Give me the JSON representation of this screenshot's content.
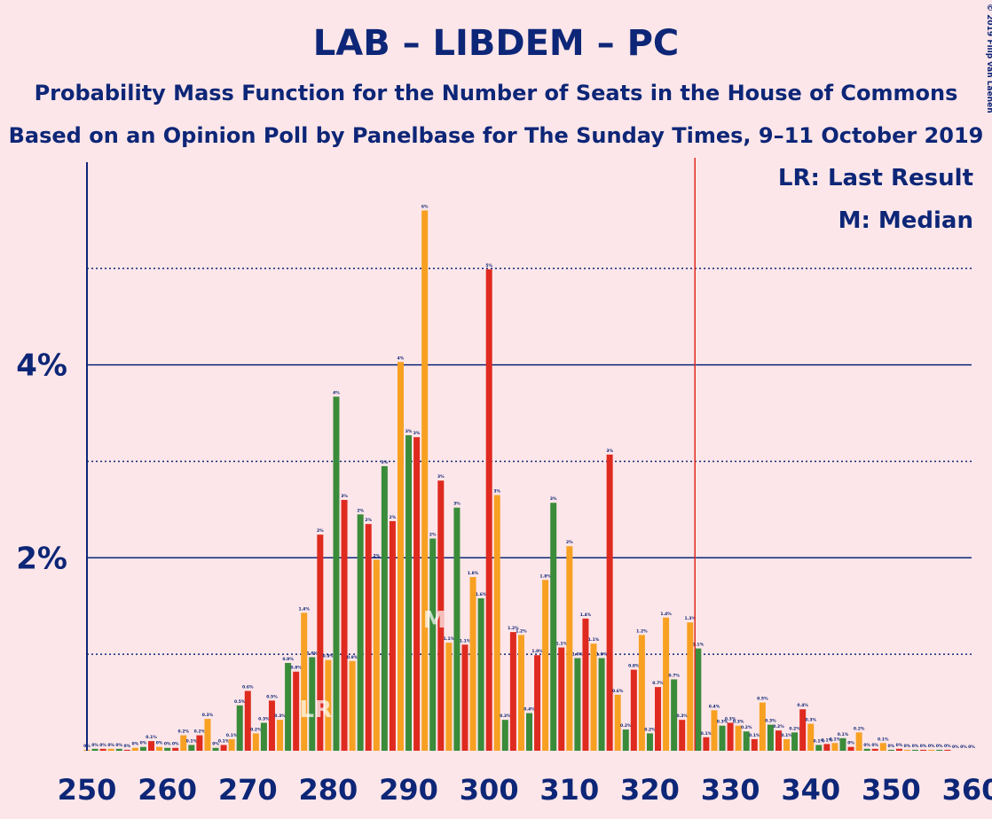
{
  "chart_data": {
    "type": "bar",
    "title": "LAB – LIBDEM – PC",
    "subtitle": "Probability Mass Function for the Number of Seats in the House of Commons",
    "subtitle2": "Based on an Opinion Poll by Panelbase for The Sunday Times, 9–11 October 2019",
    "copyright": "© 2019 Filip van Laenen",
    "legend_lr": "LR: Last Result",
    "legend_m": "M: Median",
    "last_result_marker": "LR",
    "median_marker": "M",
    "last_result": 278,
    "median": 293,
    "majority": 326,
    "x": [
      250,
      251,
      252,
      253,
      254,
      255,
      256,
      257,
      258,
      259,
      260,
      261,
      262,
      263,
      264,
      265,
      266,
      267,
      268,
      269,
      270,
      271,
      272,
      273,
      274,
      275,
      276,
      277,
      278,
      279,
      280,
      281,
      282,
      283,
      284,
      285,
      286,
      287,
      288,
      289,
      290,
      291,
      292,
      293,
      294,
      295,
      296,
      297,
      298,
      299,
      300,
      301,
      302,
      303,
      304,
      305,
      306,
      307,
      308,
      309,
      310,
      311,
      312,
      313,
      314,
      315,
      316,
      317,
      318,
      319,
      320,
      321,
      322,
      323,
      324,
      325,
      326,
      327,
      328,
      329,
      330,
      331,
      332,
      333,
      334,
      335,
      336,
      337,
      338,
      339,
      340,
      341,
      342,
      343,
      344,
      345,
      346,
      347,
      348,
      349,
      350,
      351,
      352,
      353,
      354,
      355,
      356,
      357,
      358,
      359,
      360
    ],
    "values": [
      0.01,
      0.02,
      0.02,
      0.02,
      0.02,
      0.01,
      0.03,
      0.04,
      0.1,
      0.04,
      0.03,
      0.03,
      0.16,
      0.06,
      0.16,
      0.33,
      0.03,
      0.06,
      0.12,
      0.47,
      0.62,
      0.18,
      0.29,
      0.52,
      0.32,
      0.91,
      0.82,
      1.43,
      0.97,
      2.24,
      0.94,
      3.67,
      2.6,
      0.93,
      2.45,
      2.35,
      1.98,
      2.95,
      2.38,
      4.03,
      3.27,
      3.25,
      5.6,
      2.2,
      2.8,
      1.12,
      2.52,
      1.1,
      1.8,
      1.58,
      4.99,
      2.65,
      0.32,
      1.23,
      1.2,
      0.39,
      0.99,
      1.77,
      2.57,
      1.07,
      2.12,
      0.96,
      1.37,
      1.11,
      0.96,
      3.07,
      0.58,
      0.22,
      0.84,
      1.2,
      0.18,
      0.66,
      1.38,
      0.74,
      0.32,
      1.33,
      1.06,
      0.14,
      0.42,
      0.26,
      0.29,
      0.26,
      0.2,
      0.12,
      0.5,
      0.27,
      0.21,
      0.12,
      0.19,
      0.43,
      0.28,
      0.06,
      0.07,
      0.08,
      0.13,
      0.04,
      0.19,
      0.02,
      0.02,
      0.08,
      0.01,
      0.02,
      0.01,
      0.01,
      0.01,
      0.01,
      0.01,
      0.01,
      0,
      0,
      0
    ],
    "value_labels": [
      "0%",
      "0%",
      "0%",
      "0%",
      "0%",
      "0%",
      "0%",
      "0%",
      "0.1%",
      "0%",
      "0%",
      "0%",
      "0.2%",
      "0.1%",
      "0.2%",
      "0.3%",
      "0%",
      "0.1%",
      "0.1%",
      "0.5%",
      "0.6%",
      "0.2%",
      "0.3%",
      "0.5%",
      "0.3%",
      "0.9%",
      "0.8%",
      "1.4%",
      "1.0%",
      "2%",
      "0.9%",
      "4%",
      "3%",
      "0.9%",
      "2%",
      "2%",
      "2%",
      "3%",
      "2%",
      "4%",
      "3%",
      "3%",
      "6%",
      "2%",
      "3%",
      "1.1%",
      "3%",
      "1.1%",
      "1.8%",
      "1.6%",
      "5%",
      "3%",
      "0.3%",
      "1.2%",
      "1.2%",
      "0.4%",
      "1.0%",
      "1.8%",
      "3%",
      "1.1%",
      "2%",
      "1.0%",
      "1.4%",
      "1.1%",
      "1.0%",
      "3%",
      "0.6%",
      "0.2%",
      "0.8%",
      "1.2%",
      "0.2%",
      "0.7%",
      "1.4%",
      "0.7%",
      "0.3%",
      "1.3%",
      "1.1%",
      "0.1%",
      "0.4%",
      "0.3%",
      "0.3%",
      "0.3%",
      "0.2%",
      "0.1%",
      "0.5%",
      "0.3%",
      "0.2%",
      "0.1%",
      "0.2%",
      "0.4%",
      "0.3%",
      "0.1%",
      "0.1%",
      "0.1%",
      "0.1%",
      "0%",
      "0.2%",
      "0%",
      "0%",
      "0.1%",
      "0%",
      "0%",
      "0%",
      "0%",
      "0%",
      "0%",
      "0%",
      "0%",
      "0%",
      "0%",
      "0%"
    ],
    "colors": [
      "#f7a022",
      "#3a8b3a",
      "#df2a1f"
    ],
    "xlim": [
      250,
      360
    ],
    "xticks": [
      250,
      260,
      270,
      280,
      290,
      300,
      310,
      320,
      330,
      340,
      350,
      360
    ],
    "ylim": [
      0,
      6.1
    ],
    "yticks": [
      {
        "value": 2,
        "label": "2%"
      },
      {
        "value": 4,
        "label": "4%"
      }
    ],
    "minor_grid": [
      1,
      3,
      5
    ]
  }
}
